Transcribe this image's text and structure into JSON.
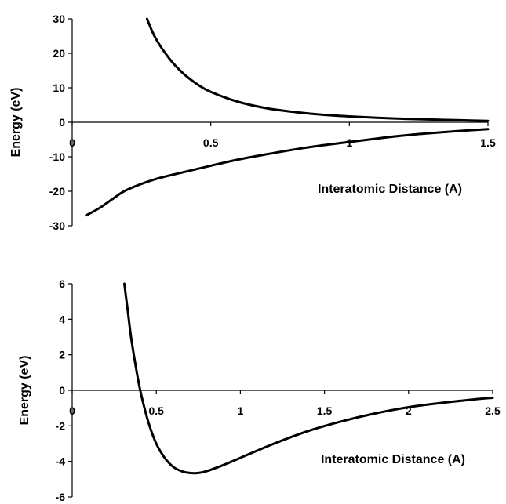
{
  "chart_data": [
    {
      "type": "line",
      "title": "",
      "xlabel": "Interatomic Distance (A)",
      "ylabel": "Energy (eV)",
      "xlim": [
        0,
        1.5
      ],
      "ylim": [
        -30,
        30
      ],
      "x_ticks": [
        "0",
        "0.5",
        "1",
        "1.5"
      ],
      "y_ticks": [
        "30",
        "20",
        "10",
        "0",
        "-10",
        "-20",
        "-30"
      ],
      "legend": "none",
      "grid": false,
      "series": [
        {
          "x": [
            0.27,
            0.3,
            0.35,
            0.4,
            0.45,
            0.5,
            0.6,
            0.7,
            0.8,
            0.9,
            1.0,
            1.1,
            1.2,
            1.3,
            1.4,
            1.5
          ],
          "y": [
            30.0,
            24.5,
            18.5,
            14.2,
            11.1,
            8.8,
            5.9,
            4.1,
            3.0,
            2.2,
            1.7,
            1.3,
            1.0,
            0.8,
            0.6,
            0.4
          ]
        },
        {
          "x": [
            0.05,
            0.1,
            0.15,
            0.2,
            0.3,
            0.4,
            0.5,
            0.6,
            0.7,
            0.8,
            0.9,
            1.0,
            1.1,
            1.2,
            1.3,
            1.4,
            1.5
          ],
          "y": [
            -27.0,
            -24.8,
            -22.0,
            -19.5,
            -16.5,
            -14.5,
            -12.6,
            -10.8,
            -9.3,
            -7.9,
            -6.7,
            -5.7,
            -4.7,
            -3.8,
            -3.1,
            -2.5,
            -2.0
          ]
        }
      ]
    },
    {
      "type": "line",
      "title": "",
      "xlabel": "Interatomic Distance (A)",
      "ylabel": "Energy (eV)",
      "xlim": [
        0,
        2.5
      ],
      "ylim": [
        -6,
        6
      ],
      "x_ticks": [
        "0",
        "0.5",
        "1",
        "1.5",
        "2",
        "2.5"
      ],
      "y_ticks": [
        "6",
        "4",
        "2",
        "0",
        "-2",
        "-4",
        "-6"
      ],
      "legend": "none",
      "grid": false,
      "series": [
        {
          "x": [
            0.31,
            0.33,
            0.35,
            0.37,
            0.4,
            0.43,
            0.46,
            0.5,
            0.55,
            0.6,
            0.65,
            0.7,
            0.75,
            0.8,
            0.9,
            1.0,
            1.2,
            1.4,
            1.6,
            1.8,
            2.0,
            2.2,
            2.4,
            2.5
          ],
          "y": [
            6.0,
            4.5,
            3.0,
            1.8,
            0.2,
            -1.0,
            -2.0,
            -3.0,
            -3.8,
            -4.3,
            -4.55,
            -4.65,
            -4.65,
            -4.55,
            -4.2,
            -3.8,
            -3.0,
            -2.3,
            -1.75,
            -1.3,
            -0.95,
            -0.7,
            -0.5,
            -0.42
          ]
        }
      ]
    }
  ]
}
